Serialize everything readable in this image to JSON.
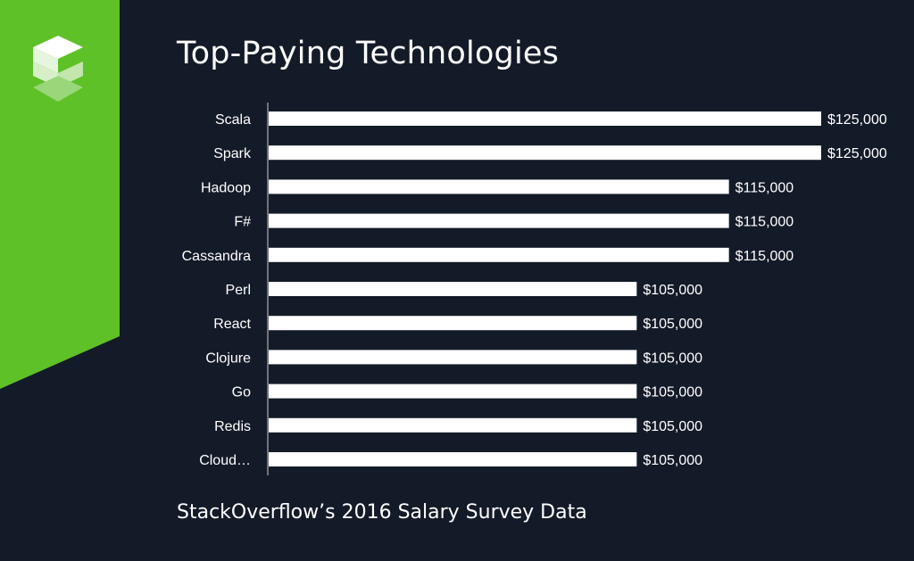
{
  "slide": {
    "title": "Top-Paying Technologies",
    "footer": "StackOverflow’s 2016 Salary Survey Data",
    "accent_color": "#5ec128",
    "background_color": "#141b28",
    "logo_icon": "stacked-s-logo-icon"
  },
  "chart_data": {
    "type": "bar",
    "orientation": "horizontal",
    "categories": [
      "Scala",
      "Spark",
      "Hadoop",
      "F#",
      "Cassandra",
      "Perl",
      "React",
      "Clojure",
      "Go",
      "Redis",
      "Cloud…"
    ],
    "values": [
      125000,
      125000,
      115000,
      115000,
      115000,
      105000,
      105000,
      105000,
      105000,
      105000,
      105000
    ],
    "value_labels": [
      "$125,000",
      "$125,000",
      "$115,000",
      "$115,000",
      "$115,000",
      "$105,000",
      "$105,000",
      "$105,000",
      "$105,000",
      "$105,000",
      "$105,000"
    ],
    "title": "Top-Paying Technologies",
    "xlabel": "",
    "ylabel": "",
    "xlim": [
      65000,
      125000
    ],
    "bar_color": "#ffffff",
    "grid": false,
    "legend": "none"
  }
}
